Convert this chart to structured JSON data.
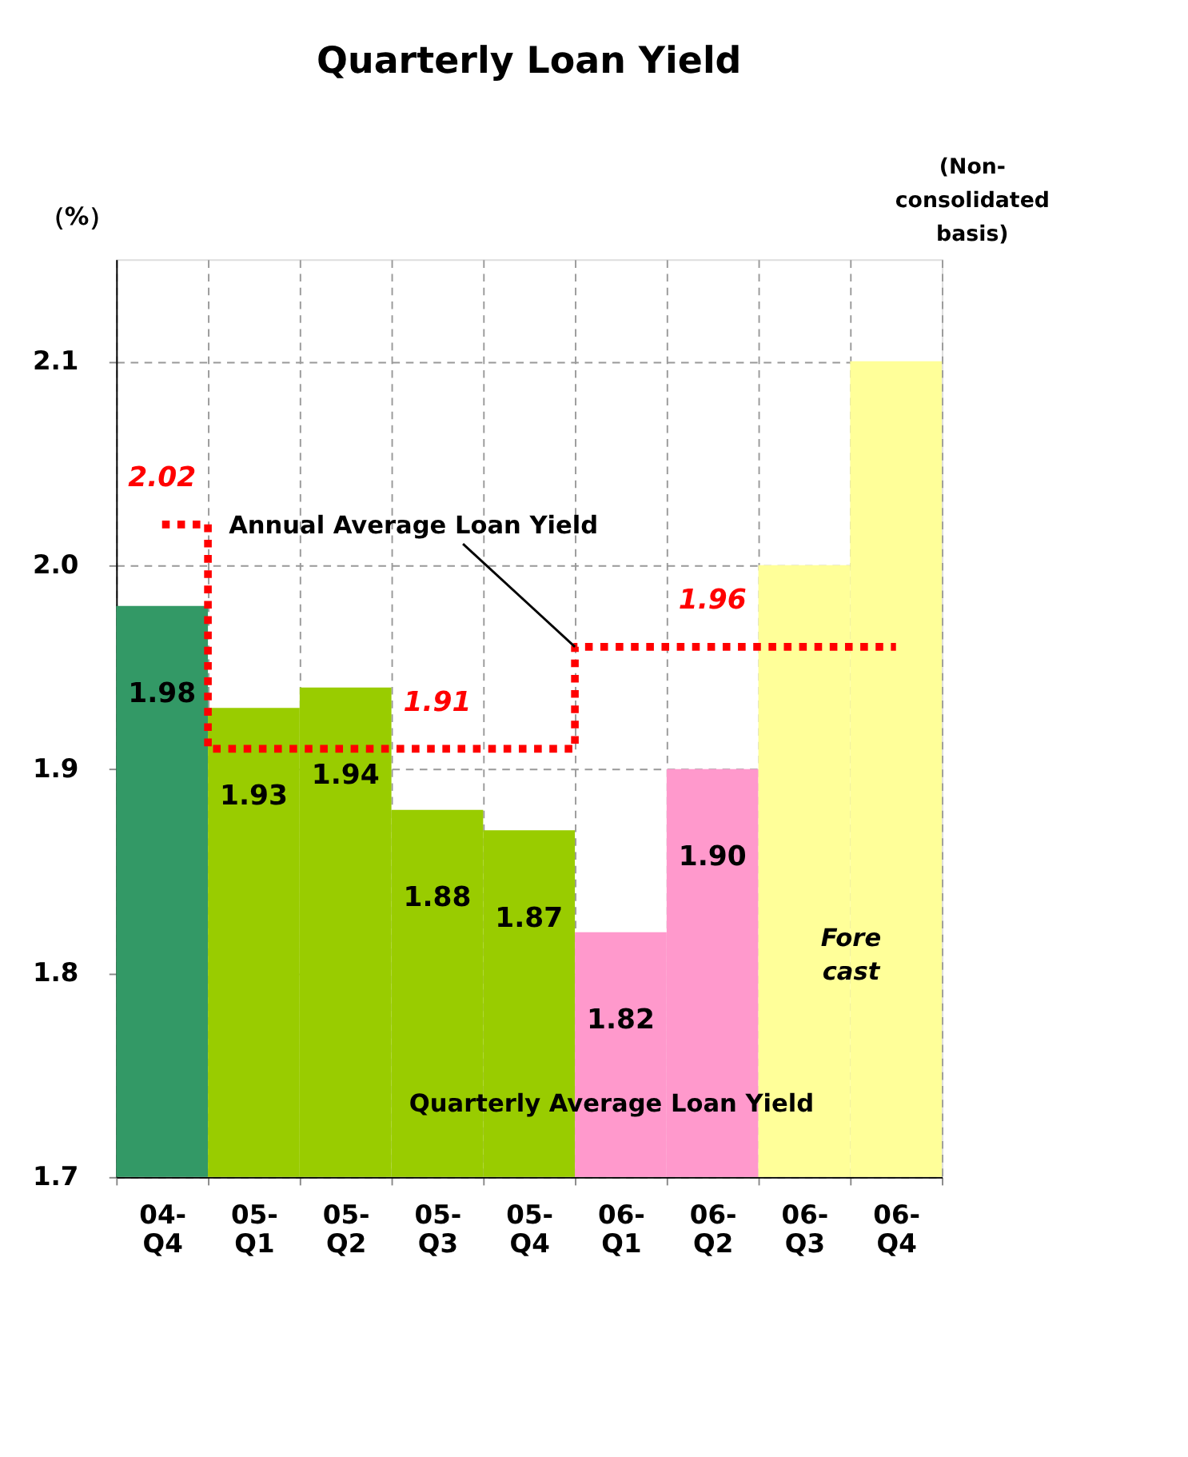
{
  "chart_data": {
    "type": "bar",
    "title": "Quarterly Loan Yield",
    "ylabel": "（%）",
    "categories": [
      "04-Q4",
      "05-Q1",
      "05-Q2",
      "05-Q3",
      "05-Q4",
      "06-Q1",
      "06-Q2",
      "06-Q3",
      "06-Q4"
    ],
    "series": [
      {
        "name": "Quarterly Average Loan Yield",
        "type": "bar",
        "values": [
          1.98,
          1.93,
          1.94,
          1.88,
          1.87,
          1.82,
          1.9,
          2.0,
          2.1
        ],
        "colors": [
          "#339966",
          "#99cc00",
          "#99cc00",
          "#99cc00",
          "#99cc00",
          "#ff99cc",
          "#ff99cc",
          "#ffff99",
          "#ffff99"
        ],
        "value_labels": [
          "1.98",
          "1.93",
          "1.94",
          "1.88",
          "1.87",
          "1.82",
          "1.90",
          null,
          null
        ]
      },
      {
        "name": "Annual Average Loan Yield",
        "type": "step",
        "color": "#ff0000",
        "line_style": "dotted",
        "values": [
          2.02,
          1.91,
          1.91,
          1.91,
          1.91,
          1.96,
          1.96,
          1.96,
          1.96
        ]
      }
    ],
    "ylim": [
      1.7,
      2.15
    ],
    "yticks": [
      1.7,
      1.8,
      1.9,
      {
        "value": 2.0,
        "label": "2.0"
      },
      2.1
    ],
    "grid": true,
    "legend": false,
    "annotations": [
      {
        "text": "2.02",
        "x": "04-Q4",
        "y": 2.02
      },
      {
        "text": "1.91",
        "x": "05-Q3",
        "y": 1.91
      },
      {
        "text": "1.96",
        "x": "06-Q2",
        "y": 1.96
      },
      "Fore cast",
      "(Non-consolidated basis)"
    ]
  }
}
